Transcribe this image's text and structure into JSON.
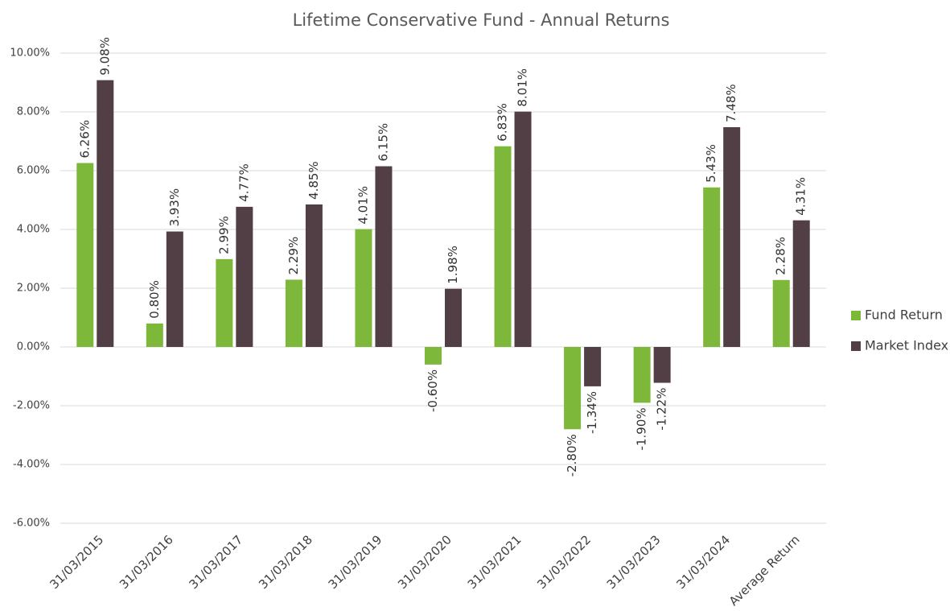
{
  "chart_data": {
    "type": "bar",
    "title": "Lifetime Conservative Fund - Annual Returns",
    "categories": [
      "31/03/2015",
      "31/03/2016",
      "31/03/2017",
      "31/03/2018",
      "31/03/2019",
      "31/03/2020",
      "31/03/2021",
      "31/03/2022",
      "31/03/2023",
      "31/03/2024",
      "Average Return"
    ],
    "series": [
      {
        "name": "Fund Return",
        "color": "#7db83a",
        "values": [
          6.26,
          0.8,
          2.99,
          2.29,
          4.01,
          -0.6,
          6.83,
          -2.8,
          -1.9,
          5.43,
          2.28
        ],
        "value_labels": [
          "6.26%",
          "0.80%",
          "2.99%",
          "2.29%",
          "4.01%",
          "-0.60%",
          "6.83%",
          "-2.80%",
          "-1.90%",
          "5.43%",
          "2.28%"
        ]
      },
      {
        "name": "Market Index",
        "color": "#523f45",
        "values": [
          9.08,
          3.93,
          4.77,
          4.85,
          6.15,
          1.98,
          8.01,
          -1.34,
          -1.22,
          7.48,
          4.31
        ],
        "value_labels": [
          "9.08%",
          "3.93%",
          "4.77%",
          "4.85%",
          "6.15%",
          "1.98%",
          "8.01%",
          "-1.34%",
          "-1.22%",
          "7.48%",
          "4.31%"
        ]
      }
    ],
    "ylim": [
      -6,
      10
    ],
    "yticks": [
      {
        "value": -6,
        "label": "-6.00%"
      },
      {
        "value": -4,
        "label": "-4.00%"
      },
      {
        "value": -2,
        "label": "-2.00%"
      },
      {
        "value": 0,
        "label": "0.00%"
      },
      {
        "value": 2,
        "label": "2.00%"
      },
      {
        "value": 4,
        "label": "4.00%"
      },
      {
        "value": 6,
        "label": "6.00%"
      },
      {
        "value": 8,
        "label": "8.00%"
      },
      {
        "value": 10,
        "label": "10.00%"
      }
    ],
    "grid": true,
    "legend": "right"
  }
}
